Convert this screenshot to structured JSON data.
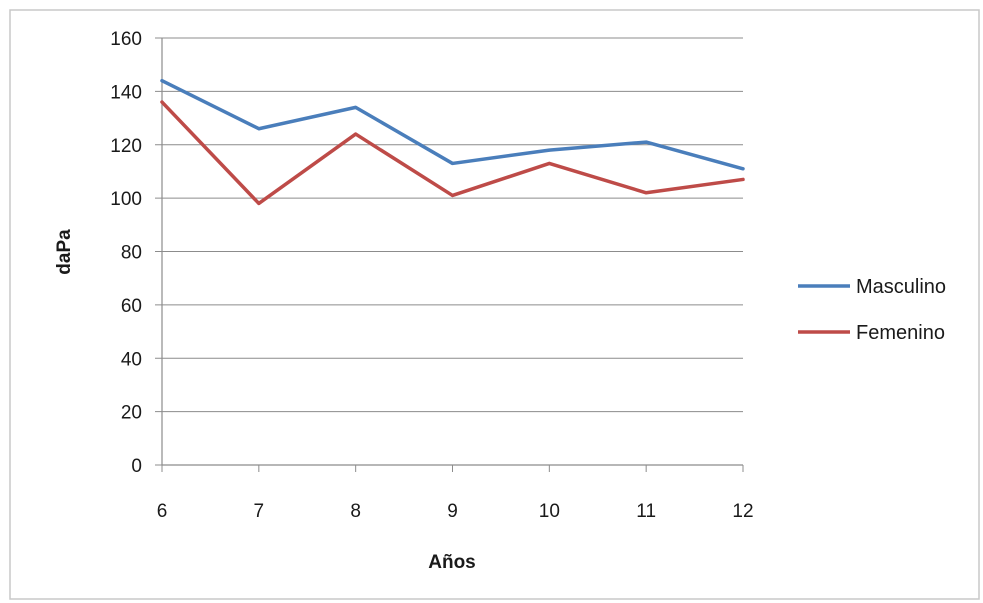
{
  "chart_data": {
    "type": "line",
    "x": [
      6,
      7,
      8,
      9,
      10,
      11,
      12
    ],
    "series": [
      {
        "name": "Masculino",
        "color": "#4a7ebb",
        "values": [
          144,
          126,
          134,
          113,
          118,
          121,
          111
        ]
      },
      {
        "name": "Femenino",
        "color": "#be4b48",
        "values": [
          136,
          98,
          124,
          101,
          113,
          102,
          107
        ]
      }
    ],
    "xlabel": "Años",
    "ylabel": "daPa",
    "ylim": [
      0,
      160
    ],
    "yticks": [
      0,
      20,
      40,
      60,
      80,
      100,
      120,
      140,
      160
    ],
    "xticks": [
      6,
      7,
      8,
      9,
      10,
      11,
      12
    ],
    "grid": "horizontal",
    "legend_position": "right"
  }
}
